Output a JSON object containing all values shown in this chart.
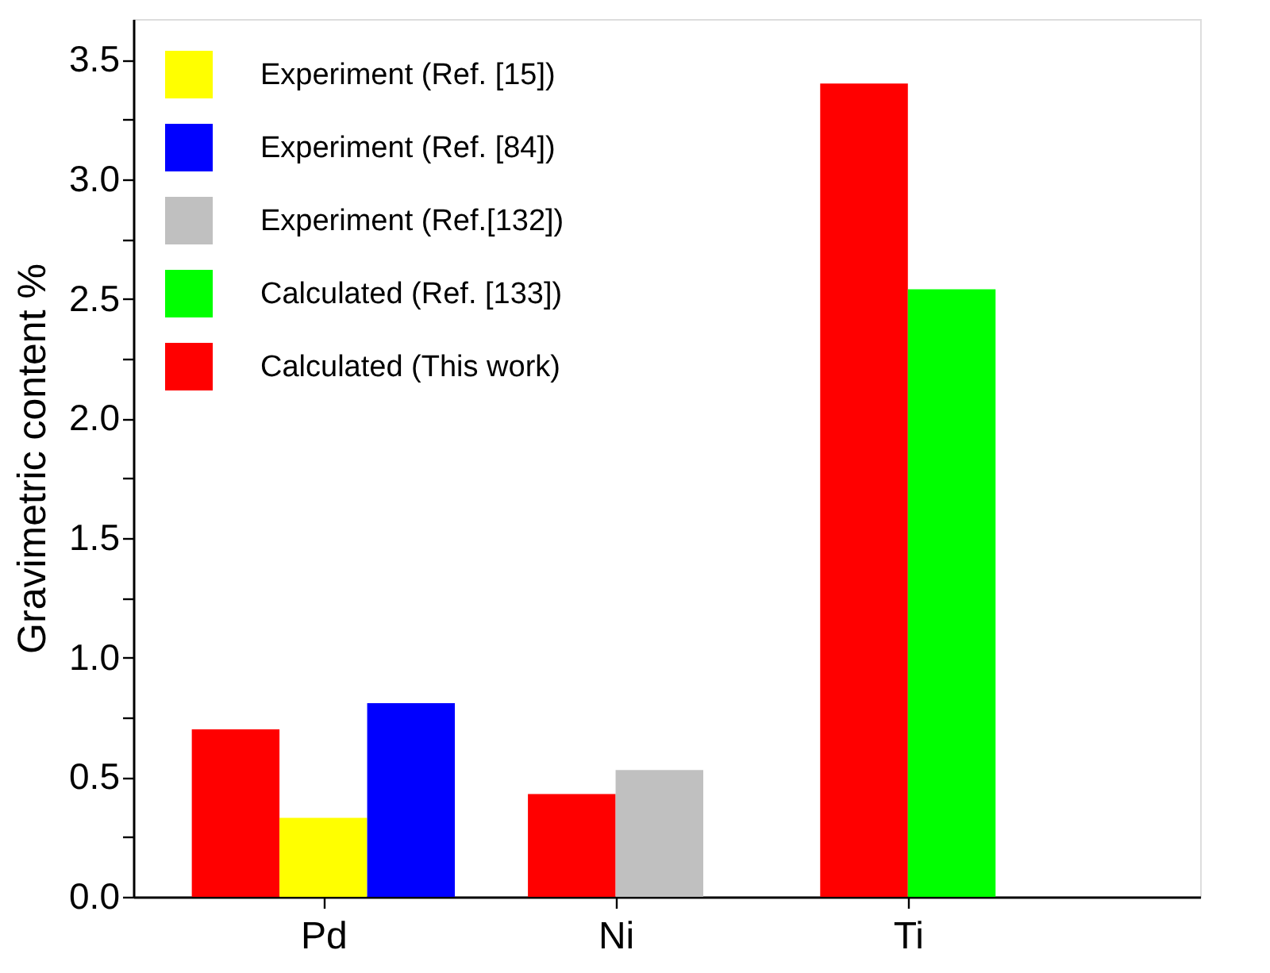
{
  "chart_data": {
    "type": "bar",
    "ylabel": "Gravimetric content %",
    "categories": [
      "Pd",
      "Ni",
      "Ti"
    ],
    "series": [
      {
        "name": "Experiment (Ref. [15])",
        "color": "#ffff00",
        "values": [
          0.33,
          null,
          null
        ]
      },
      {
        "name": "Experiment (Ref. [84])",
        "color": "#0000ff",
        "values": [
          0.81,
          null,
          null
        ]
      },
      {
        "name": "Experiment (Ref.[132])",
        "color": "#c0c0c0",
        "values": [
          null,
          0.53,
          null
        ]
      },
      {
        "name": "Calculated (Ref. [133])",
        "color": "#00ff00",
        "values": [
          null,
          null,
          2.54
        ]
      },
      {
        "name": "Calculated (This work)",
        "color": "#ff0000",
        "values": [
          0.7,
          0.43,
          3.4
        ]
      }
    ],
    "ylim": [
      0,
      3.67
    ],
    "yticks": [
      {
        "value": 0,
        "label": "0.0"
      },
      {
        "value": 0.25,
        "label": null
      },
      {
        "value": 0.5,
        "label": "0.5"
      },
      {
        "value": 0.75,
        "label": null
      },
      {
        "value": 1,
        "label": "1.0"
      },
      {
        "value": 1.25,
        "label": null
      },
      {
        "value": 1.5,
        "label": "1.5"
      },
      {
        "value": 1.75,
        "label": null
      },
      {
        "value": 2,
        "label": "2.0"
      },
      {
        "value": 2.25,
        "label": null
      },
      {
        "value": 2.5,
        "label": "2.5"
      },
      {
        "value": 2.75,
        "label": null
      },
      {
        "value": 3,
        "label": "3.0"
      },
      {
        "value": 3.25,
        "label": null
      },
      {
        "value": 3.5,
        "label": "3.5"
      }
    ],
    "grid": false,
    "legend": "top left"
  }
}
